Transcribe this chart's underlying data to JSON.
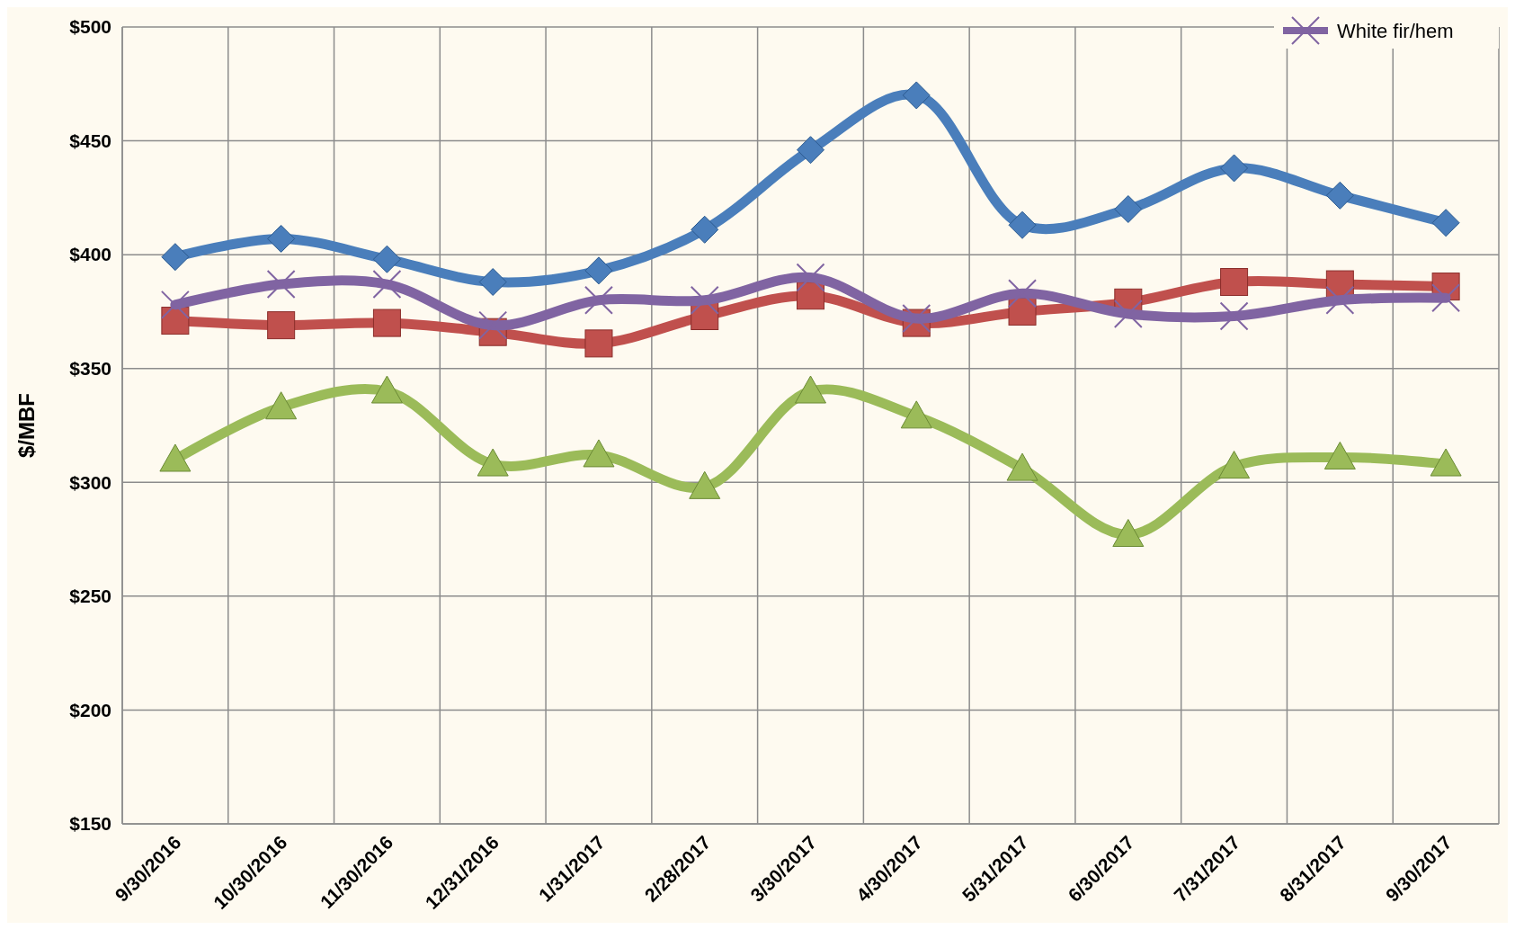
{
  "chart_data": {
    "type": "line",
    "ylabel": "$/MBF",
    "categories": [
      "9/30/2016",
      "10/30/2016",
      "11/30/2016",
      "12/31/2016",
      "1/31/2017",
      "2/28/2017",
      "3/30/2017",
      "4/30/2017",
      "5/31/2017",
      "6/30/2017",
      "7/31/2017",
      "8/31/2017",
      "9/30/2017"
    ],
    "series": [
      {
        "color": "#4a7ebb",
        "marker": "diamond",
        "values": [
          399,
          407,
          398,
          388,
          393,
          411,
          446,
          470,
          413,
          420,
          438,
          426,
          414
        ]
      },
      {
        "color": "#c0504d",
        "marker": "square",
        "values": [
          371,
          369,
          370,
          366,
          361,
          373,
          382,
          370,
          375,
          379,
          388,
          387,
          386
        ]
      },
      {
        "name": "White fir/hem",
        "color": "#8064a2",
        "marker": "cross",
        "values": [
          378,
          387,
          387,
          369,
          380,
          380,
          390,
          372,
          383,
          374,
          373,
          380,
          381
        ]
      },
      {
        "color": "#9bbb59",
        "marker": "triangle",
        "values": [
          310,
          333,
          340,
          308,
          312,
          298,
          340,
          329,
          306,
          277,
          307,
          311,
          308
        ]
      }
    ],
    "ylim": [
      150,
      500
    ],
    "yticks": [
      {
        "value": 150,
        "label": "$150"
      },
      {
        "value": 200,
        "label": "$200"
      },
      {
        "value": 250,
        "label": "$250"
      },
      {
        "value": 300,
        "label": "$300"
      },
      {
        "value": 350,
        "label": "$350"
      },
      {
        "value": 400,
        "label": "$400"
      },
      {
        "value": 450,
        "label": "$450"
      },
      {
        "value": 500,
        "label": "$500"
      }
    ],
    "grid": true,
    "legend": "top right"
  }
}
